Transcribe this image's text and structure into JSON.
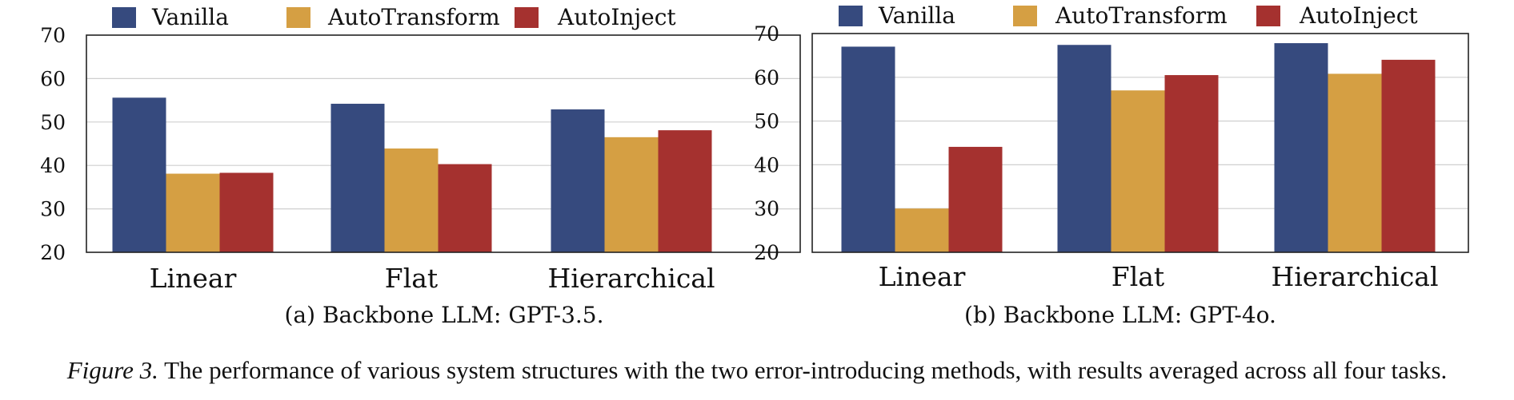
{
  "colors": {
    "Vanilla": "#364a7e",
    "AutoTransform": "#d59f43",
    "AutoInject": "#a5312f",
    "grid": "#cfcfcf",
    "axis": "#222222"
  },
  "legend": [
    "Vanilla",
    "AutoTransform",
    "AutoInject"
  ],
  "figure_caption": {
    "label": "Figure 3.",
    "text": "The performance of various system structures with the two error-introducing methods, with results averaged across all four tasks."
  },
  "chart_data": [
    {
      "type": "bar",
      "subcaption": "(a) Backbone LLM: GPT-3.5.",
      "categories": [
        "Linear",
        "Flat",
        "Hierarchical"
      ],
      "series": [
        {
          "name": "Vanilla",
          "values": [
            55.6,
            54.2,
            52.9
          ]
        },
        {
          "name": "AutoTransform",
          "values": [
            38.1,
            43.9,
            46.5
          ]
        },
        {
          "name": "AutoInject",
          "values": [
            38.3,
            40.3,
            48.1
          ]
        }
      ],
      "ylim": [
        20,
        70
      ],
      "yticks": [
        20,
        30,
        40,
        50,
        60,
        70
      ],
      "grid": true,
      "legend_position": "top"
    },
    {
      "type": "bar",
      "subcaption": "(b) Backbone LLM: GPT-4o.",
      "categories": [
        "Linear",
        "Flat",
        "Hierarchical"
      ],
      "series": [
        {
          "name": "Vanilla",
          "values": [
            67.0,
            67.4,
            67.8
          ]
        },
        {
          "name": "AutoTransform",
          "values": [
            30.0,
            57.0,
            60.8
          ]
        },
        {
          "name": "AutoInject",
          "values": [
            44.1,
            60.5,
            64.0
          ]
        }
      ],
      "ylim": [
        20,
        70
      ],
      "yticks": [
        20,
        30,
        40,
        50,
        60,
        70
      ],
      "grid": true,
      "legend_position": "top"
    }
  ]
}
